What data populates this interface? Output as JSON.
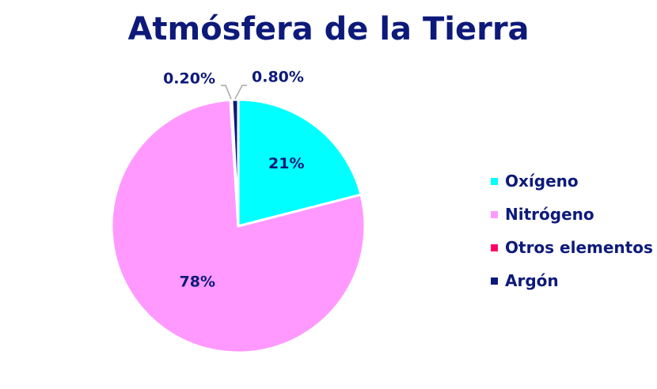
{
  "chart_data": {
    "type": "pie",
    "title": "Atmósfera de la Tierra",
    "slices": [
      {
        "name": "Oxígeno",
        "value": 21,
        "label": "21%",
        "color": "#00ffff"
      },
      {
        "name": "Nitrógeno",
        "value": 78,
        "label": "78%",
        "color": "#ff99ff"
      },
      {
        "name": "Otros elementos",
        "value": 0.2,
        "label": "0.20%",
        "color": "#ff0066"
      },
      {
        "name": "Argón",
        "value": 0.8,
        "label": "0.80%",
        "color": "#0d1a7a"
      }
    ],
    "legend_position": "right"
  },
  "colors": {
    "title": "#0d1a7a",
    "text": "#0d1a7a",
    "slice_border": "#ffffff",
    "leader_line": "#a6a6a6"
  }
}
